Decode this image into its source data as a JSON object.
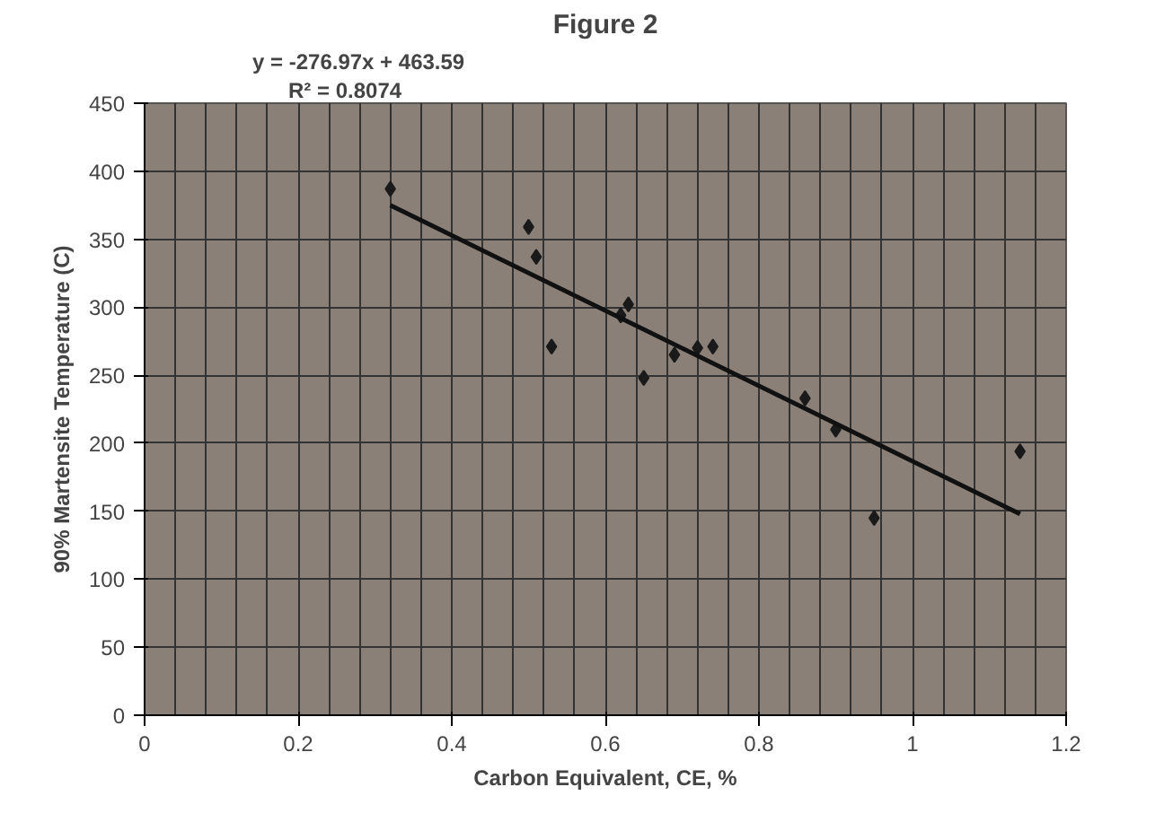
{
  "chart_data": {
    "type": "scatter",
    "title": "Figure 2",
    "xlabel": "Carbon Equivalent, CE, %",
    "ylabel": "90% Martensite Temperature (C)",
    "annotations": [
      "y = -276.97x + 463.59",
      "R² = 0.8074"
    ],
    "series": [
      {
        "color": "#1a1a1a",
        "marker": "diamond",
        "x": [
          0.32,
          0.5,
          0.51,
          0.53,
          0.62,
          0.63,
          0.65,
          0.69,
          0.72,
          0.74,
          0.86,
          0.9,
          0.95,
          1.14
        ],
        "values": [
          387,
          359,
          337,
          271,
          294,
          302,
          248,
          265,
          270,
          271,
          233,
          210,
          145,
          194
        ]
      },
      {
        "type": "line",
        "color": "#111111",
        "x": [
          0.32,
          1.14
        ],
        "values": [
          375,
          148
        ]
      }
    ],
    "xlim": [
      0,
      1.2
    ],
    "ylim": [
      0,
      450
    ],
    "xticks": [
      0,
      0.2,
      0.4,
      0.6,
      0.8,
      1,
      1.2
    ],
    "yticks": [
      0,
      50,
      100,
      150,
      200,
      250,
      300,
      350,
      400,
      450
    ],
    "grid": true
  }
}
